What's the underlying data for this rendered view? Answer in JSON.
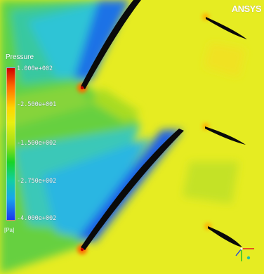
{
  "legend": {
    "title": "Pressure",
    "ticks": [
      "1.000e+002",
      "-2.500e+001",
      "-1.500e+002",
      "-2.750e+002",
      "-4.000e+002"
    ],
    "unit": "[Pa]",
    "colors": [
      "#d10000",
      "#ff6a00",
      "#ffd400",
      "#e8ef10",
      "#a2e018",
      "#18d426",
      "#10d0a0",
      "#18a4ee",
      "#1a36f0"
    ]
  },
  "logo": {
    "text": "ANSYS"
  },
  "triad": {
    "x_color": "#e02020",
    "y_color": "#20c020",
    "z_color": "#2040e0"
  }
}
